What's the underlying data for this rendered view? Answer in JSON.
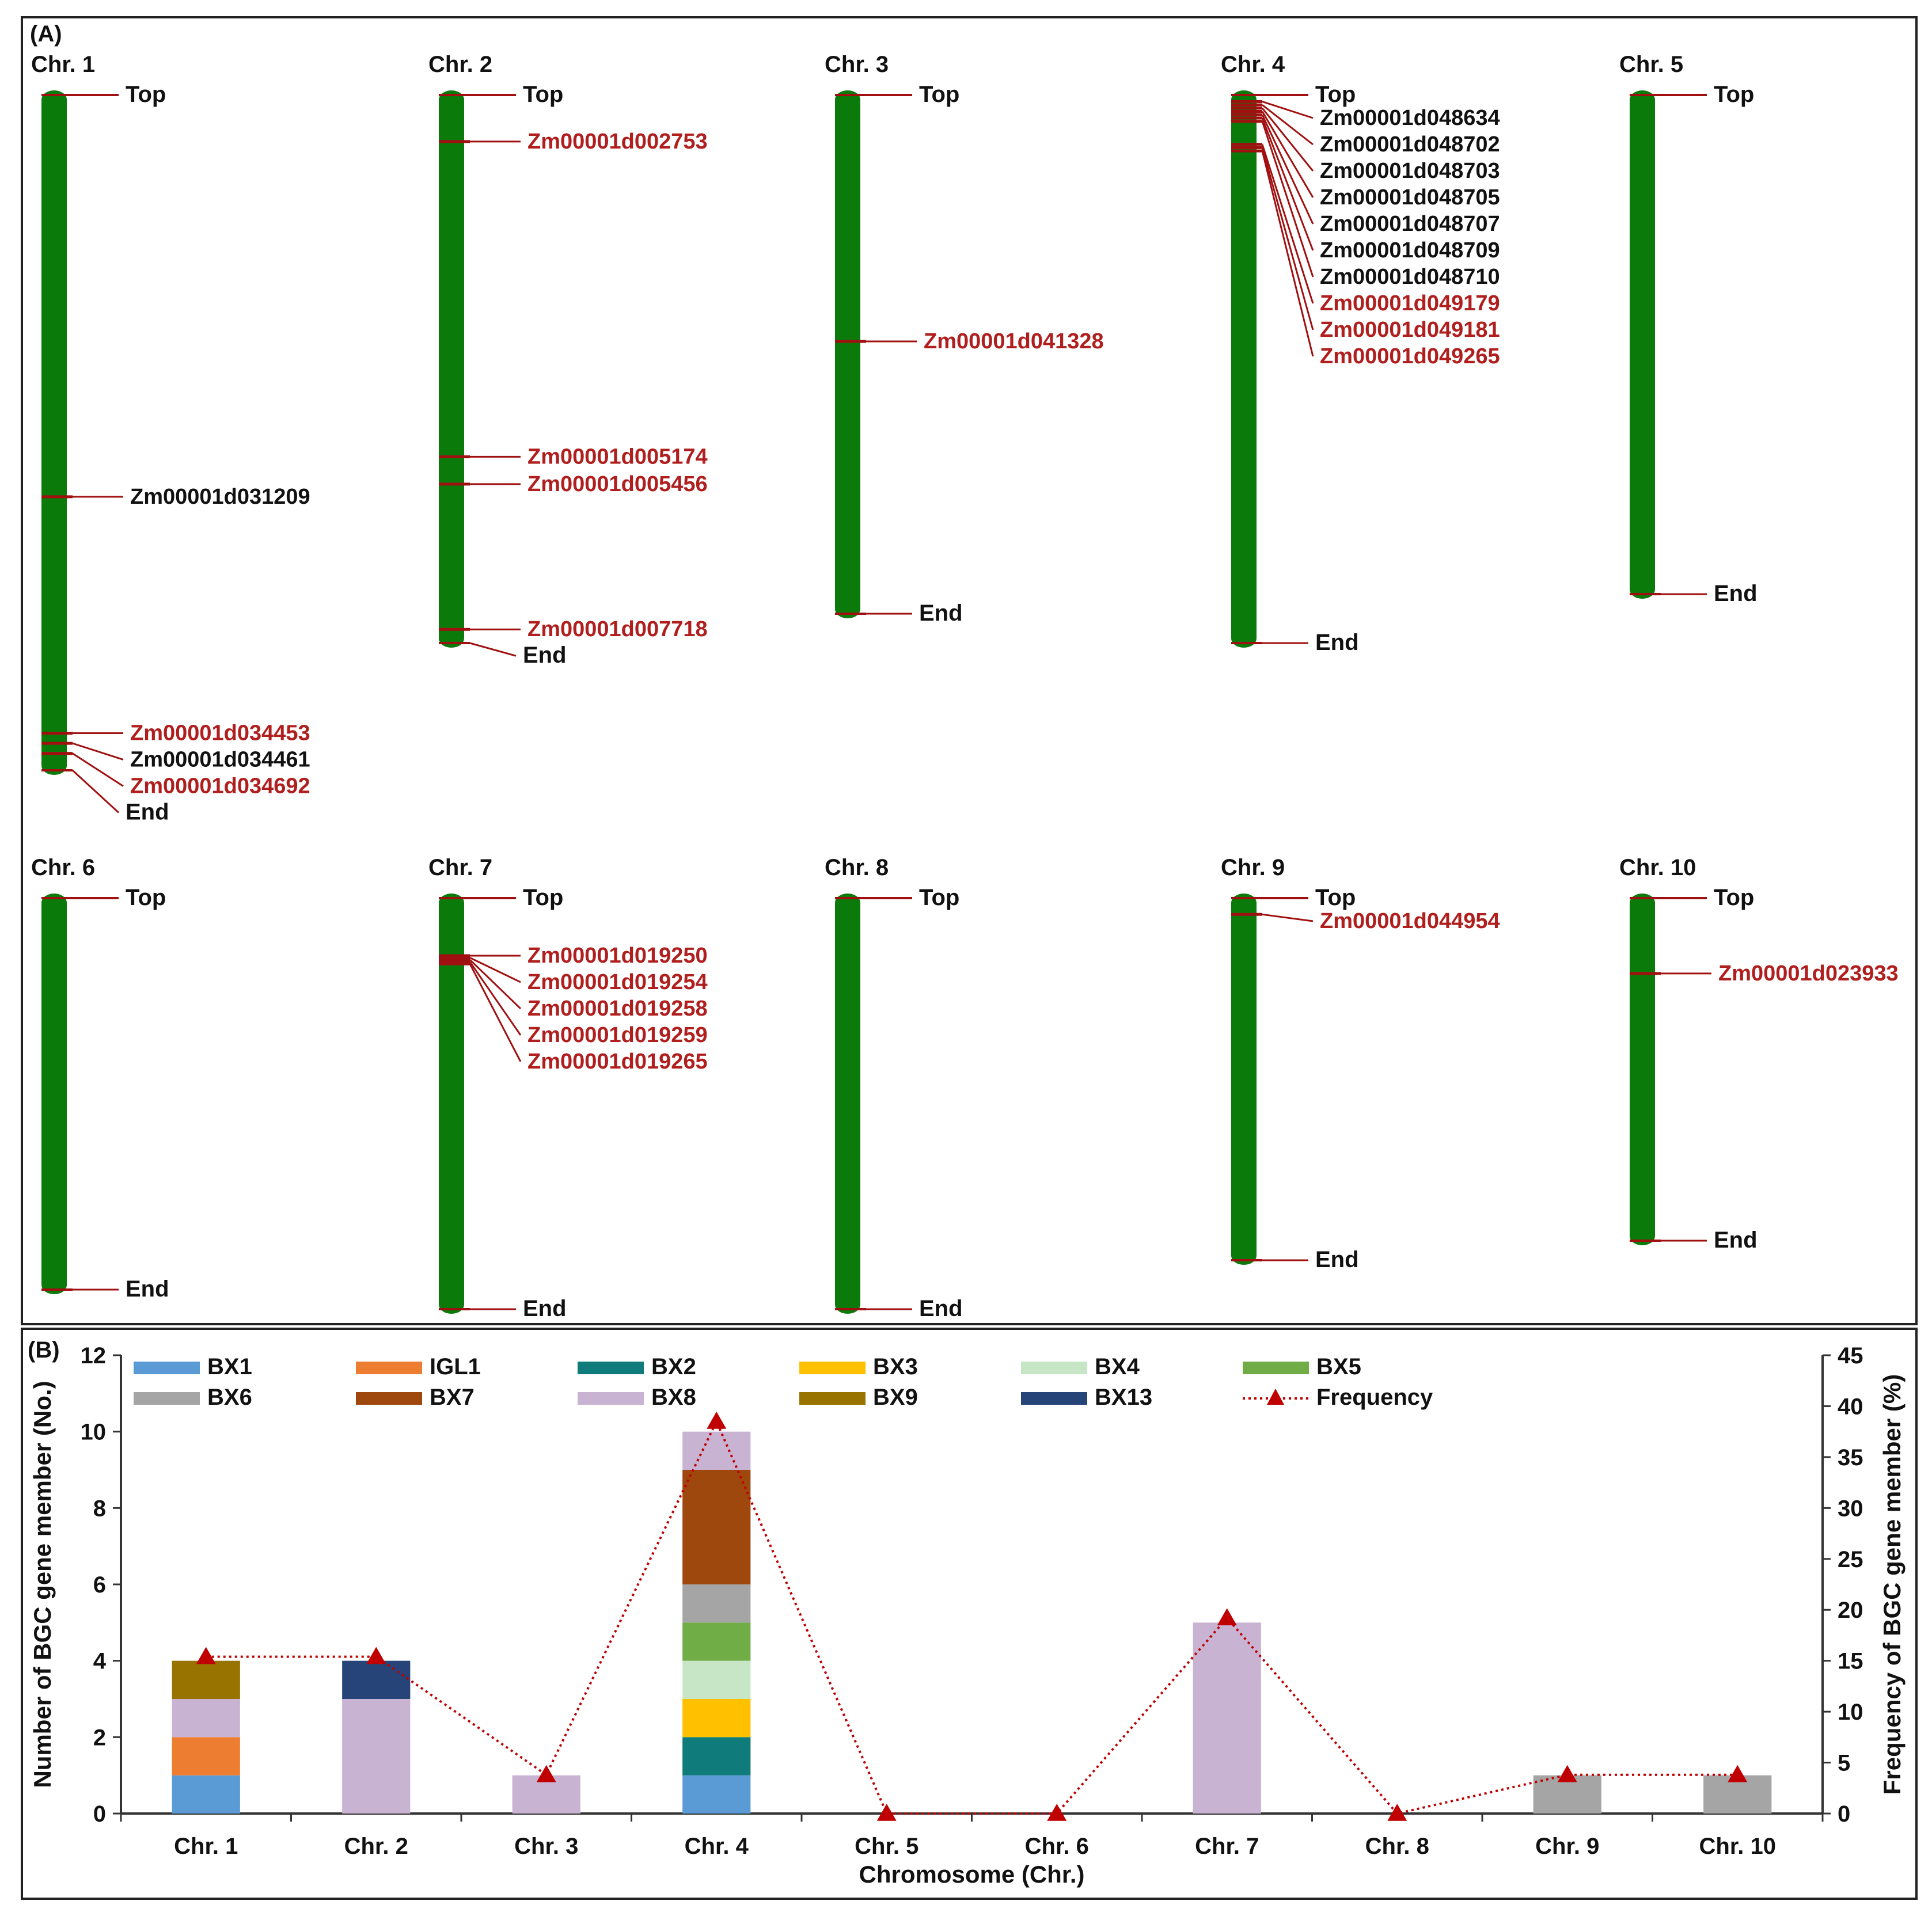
{
  "panel_a": {
    "label": "(A)",
    "top_label": "Top",
    "end_label": "End",
    "bar_color": "#0a7a0a",
    "marker_color": "#a01010",
    "red_text": "#b01e1e",
    "chromosomes": [
      {
        "name": "Chr. 1",
        "len": 0.69,
        "genes": [
          {
            "id": "Zm00001d031209",
            "pos": 0.595,
            "red": false
          },
          {
            "id": "Zm00001d034453",
            "pos": 0.945,
            "red": true
          },
          {
            "id": "Zm00001d034461",
            "pos": 0.96,
            "red": false
          },
          {
            "id": "Zm00001d034692",
            "pos": 0.975,
            "red": true
          }
        ]
      },
      {
        "name": "Chr. 2",
        "len": 0.56,
        "genes": [
          {
            "id": "Zm00001d002753",
            "pos": 0.085,
            "red": true
          },
          {
            "id": "Zm00001d005174",
            "pos": 0.66,
            "red": true
          },
          {
            "id": "Zm00001d005456",
            "pos": 0.71,
            "red": true
          },
          {
            "id": "Zm00001d007718",
            "pos": 0.975,
            "red": true
          }
        ]
      },
      {
        "name": "Chr. 3",
        "len": 0.53,
        "genes": [
          {
            "id": "Zm00001d041328",
            "pos": 0.475,
            "red": true
          }
        ]
      },
      {
        "name": "Chr. 4",
        "len": 0.56,
        "genes": [
          {
            "id": "Zm00001d048634",
            "pos": 0.012,
            "red": false
          },
          {
            "id": "Zm00001d048702",
            "pos": 0.018,
            "red": false
          },
          {
            "id": "Zm00001d048703",
            "pos": 0.024,
            "red": false
          },
          {
            "id": "Zm00001d048705",
            "pos": 0.03,
            "red": false
          },
          {
            "id": "Zm00001d048707",
            "pos": 0.036,
            "red": false
          },
          {
            "id": "Zm00001d048709",
            "pos": 0.042,
            "red": false
          },
          {
            "id": "Zm00001d048710",
            "pos": 0.048,
            "red": false
          },
          {
            "id": "Zm00001d049179",
            "pos": 0.09,
            "red": true
          },
          {
            "id": "Zm00001d049181",
            "pos": 0.096,
            "red": true
          },
          {
            "id": "Zm00001d049265",
            "pos": 0.102,
            "red": true
          }
        ]
      },
      {
        "name": "Chr. 5",
        "len": 0.51,
        "genes": []
      },
      {
        "name": "Chr. 6",
        "len": 0.4,
        "genes": []
      },
      {
        "name": "Chr. 7",
        "len": 0.42,
        "genes": [
          {
            "id": "Zm00001d019250",
            "pos": 0.14,
            "red": true
          },
          {
            "id": "Zm00001d019254",
            "pos": 0.145,
            "red": true
          },
          {
            "id": "Zm00001d019258",
            "pos": 0.15,
            "red": true
          },
          {
            "id": "Zm00001d019259",
            "pos": 0.155,
            "red": true
          },
          {
            "id": "Zm00001d019265",
            "pos": 0.16,
            "red": true
          }
        ]
      },
      {
        "name": "Chr. 8",
        "len": 0.42,
        "genes": []
      },
      {
        "name": "Chr. 9",
        "len": 0.37,
        "genes": [
          {
            "id": "Zm00001d044954",
            "pos": 0.045,
            "red": true
          }
        ]
      },
      {
        "name": "Chr. 10",
        "len": 0.35,
        "genes": [
          {
            "id": "Zm00001d023933",
            "pos": 0.22,
            "red": true
          }
        ]
      }
    ]
  },
  "chart_data": {
    "type": "bar",
    "panel_label": "(B)",
    "title": "",
    "categories": [
      "Chr. 1",
      "Chr. 2",
      "Chr. 3",
      "Chr. 4",
      "Chr. 5",
      "Chr. 6",
      "Chr. 7",
      "Chr. 8",
      "Chr. 9",
      "Chr. 10"
    ],
    "xlabel": "Chromosome (Chr.)",
    "ylabel": "Number of BGC gene member (No.)",
    "y2label": "Frequency of BGC gene member (%)",
    "ylim": [
      0,
      12
    ],
    "y2lim": [
      0,
      45
    ],
    "yticks": [
      "0",
      "2",
      "4",
      "6",
      "8",
      "10",
      "12"
    ],
    "y2ticks": [
      "0",
      "5",
      "10",
      "15",
      "20",
      "25",
      "30",
      "35",
      "40",
      "45"
    ],
    "stacked": true,
    "series": [
      {
        "name": "BX1",
        "color": "#5b9bd5",
        "values": [
          1,
          0,
          0,
          1,
          0,
          0,
          0,
          0,
          0,
          0
        ]
      },
      {
        "name": "IGL1",
        "color": "#ed7d31",
        "values": [
          1,
          0,
          0,
          0,
          0,
          0,
          0,
          0,
          0,
          0
        ]
      },
      {
        "name": "BX2",
        "color": "#0f7b7b",
        "values": [
          0,
          0,
          0,
          1,
          0,
          0,
          0,
          0,
          0,
          0
        ]
      },
      {
        "name": "BX3",
        "color": "#ffc000",
        "values": [
          0,
          0,
          0,
          1,
          0,
          0,
          0,
          0,
          0,
          0
        ]
      },
      {
        "name": "BX4",
        "color": "#c6e6c6",
        "values": [
          0,
          0,
          0,
          1,
          0,
          0,
          0,
          0,
          0,
          0
        ]
      },
      {
        "name": "BX5",
        "color": "#70ad47",
        "values": [
          0,
          0,
          0,
          1,
          0,
          0,
          0,
          0,
          0,
          0
        ]
      },
      {
        "name": "BX6",
        "color": "#a5a5a5",
        "values": [
          0,
          0,
          0,
          1,
          0,
          0,
          0,
          0,
          1,
          1
        ]
      },
      {
        "name": "BX7",
        "color": "#9e480e",
        "values": [
          0,
          0,
          0,
          3,
          0,
          0,
          0,
          0,
          0,
          0
        ]
      },
      {
        "name": "BX8",
        "color": "#c9b3d3",
        "values": [
          1,
          3,
          1,
          1,
          0,
          0,
          5,
          0,
          0,
          0
        ]
      },
      {
        "name": "BX9",
        "color": "#997300",
        "values": [
          1,
          0,
          0,
          0,
          0,
          0,
          0,
          0,
          0,
          0
        ]
      },
      {
        "name": "BX13",
        "color": "#264478",
        "values": [
          0,
          1,
          0,
          0,
          0,
          0,
          0,
          0,
          0,
          0
        ]
      }
    ],
    "line": {
      "name": "Frequency",
      "color": "#c00000",
      "axis": "right",
      "values": [
        15.4,
        15.4,
        3.8,
        38.5,
        0,
        0,
        19.2,
        0,
        3.8,
        3.8
      ]
    },
    "legend_position": "top"
  }
}
